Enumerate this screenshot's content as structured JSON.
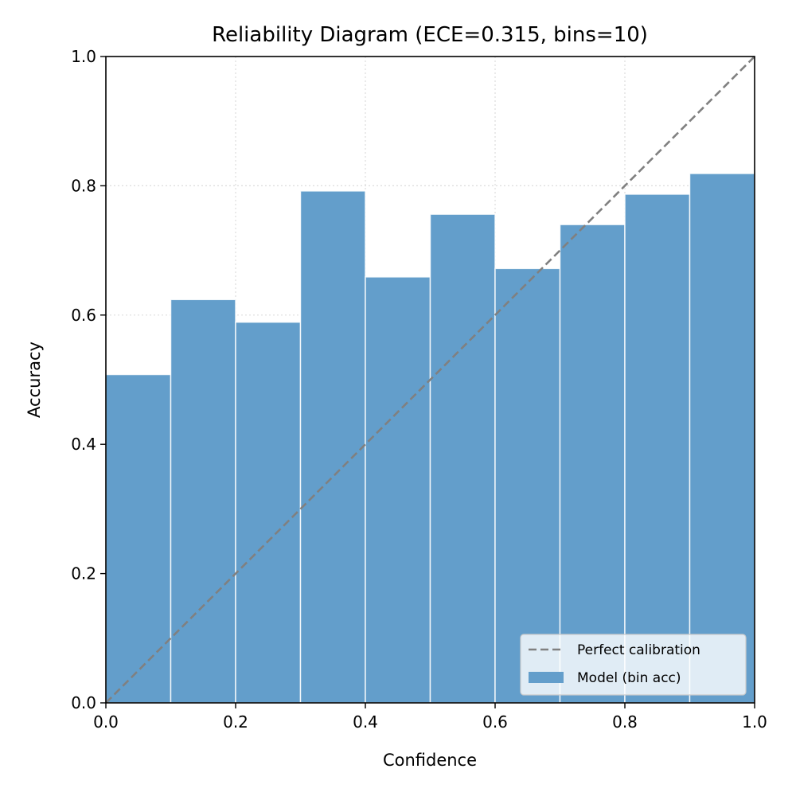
{
  "chart_data": {
    "type": "bar",
    "title": "Reliability Diagram (ECE=0.315, bins=10)",
    "xlabel": "Confidence",
    "ylabel": "Accuracy",
    "xlim": [
      0.0,
      1.0
    ],
    "ylim": [
      0.0,
      1.0
    ],
    "xticks": [
      "0.0",
      "0.2",
      "0.4",
      "0.6",
      "0.8",
      "1.0"
    ],
    "yticks": [
      "0.0",
      "0.2",
      "0.4",
      "0.6",
      "0.8",
      "1.0"
    ],
    "grid": true,
    "legend_position": "bottom-right",
    "bins": [
      {
        "x0": 0.0,
        "x1": 0.1,
        "accuracy": 0.508
      },
      {
        "x0": 0.1,
        "x1": 0.2,
        "accuracy": 0.624
      },
      {
        "x0": 0.2,
        "x1": 0.3,
        "accuracy": 0.589
      },
      {
        "x0": 0.3,
        "x1": 0.4,
        "accuracy": 0.792
      },
      {
        "x0": 0.4,
        "x1": 0.5,
        "accuracy": 0.659
      },
      {
        "x0": 0.5,
        "x1": 0.6,
        "accuracy": 0.756
      },
      {
        "x0": 0.6,
        "x1": 0.7,
        "accuracy": 0.672
      },
      {
        "x0": 0.7,
        "x1": 0.8,
        "accuracy": 0.74
      },
      {
        "x0": 0.8,
        "x1": 0.9,
        "accuracy": 0.787
      },
      {
        "x0": 0.9,
        "x1": 1.0,
        "accuracy": 0.819
      }
    ],
    "series": [
      {
        "name": "Perfect calibration",
        "kind": "line",
        "style": "dashed",
        "color": "#808080",
        "x": [
          0.0,
          1.0
        ],
        "y": [
          0.0,
          1.0
        ]
      },
      {
        "name": "Model (bin acc)",
        "kind": "bar",
        "color": "#639ECB"
      }
    ]
  }
}
